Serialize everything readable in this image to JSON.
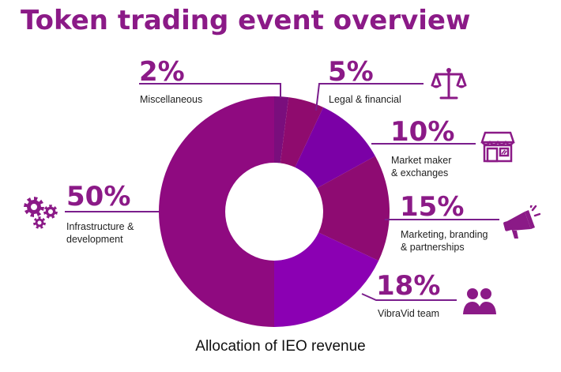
{
  "title": "Token trading event overview",
  "caption": "Allocation of IEO revenue",
  "colors": {
    "title": "#8B1A87",
    "misc": "#7A0E7D",
    "legal": "#8F0B6E",
    "market": "#7B00A6",
    "marketing": "#8E0B72",
    "team": "#8B00B3",
    "infra": "#8F0A80"
  },
  "labels": {
    "misc": {
      "pct": "2%",
      "text": "Miscellaneous"
    },
    "legal": {
      "pct": "5%",
      "text": "Legal & financial"
    },
    "market": {
      "pct": "10%",
      "text": "Market maker\n& exchanges"
    },
    "marketing": {
      "pct": "15%",
      "text": "Marketing, branding\n& partnerships"
    },
    "team": {
      "pct": "18%",
      "text": "VibraVid team"
    },
    "infra": {
      "pct": "50%",
      "text": "Infrastructure &\ndevelopment"
    }
  },
  "icons": {
    "legal": "scales-icon",
    "market": "storefront-icon",
    "marketing": "megaphone-icon",
    "team": "team-icon",
    "infra": "gears-icon"
  },
  "chart_data": {
    "type": "pie",
    "donut": true,
    "categories": [
      "Miscellaneous",
      "Legal & financial",
      "Market maker & exchanges",
      "Marketing, branding & partnerships",
      "VibraVid team",
      "Infrastructure & development"
    ],
    "values": [
      2,
      5,
      10,
      15,
      18,
      50
    ],
    "unit": "%"
  }
}
